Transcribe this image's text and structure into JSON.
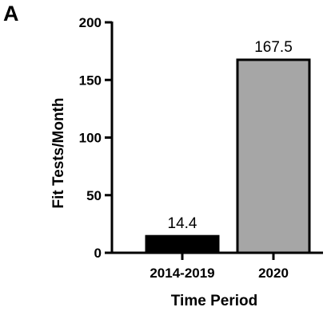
{
  "panel_label": "A",
  "chart_data": {
    "type": "bar",
    "categories": [
      "2014-2019",
      "2020"
    ],
    "values": [
      14.4,
      167.5
    ],
    "data_labels": [
      "14.4",
      "167.5"
    ],
    "bar_colors": [
      "#000000",
      "#a6a6a6"
    ],
    "xlabel": "Time Period",
    "ylabel": "Fit Tests/Month",
    "ylim": [
      0,
      200
    ],
    "yticks": [
      0,
      50,
      100,
      150,
      200
    ],
    "ytick_labels": [
      "0",
      "50",
      "100",
      "150",
      "200"
    ],
    "grid": false,
    "legend": "none"
  }
}
